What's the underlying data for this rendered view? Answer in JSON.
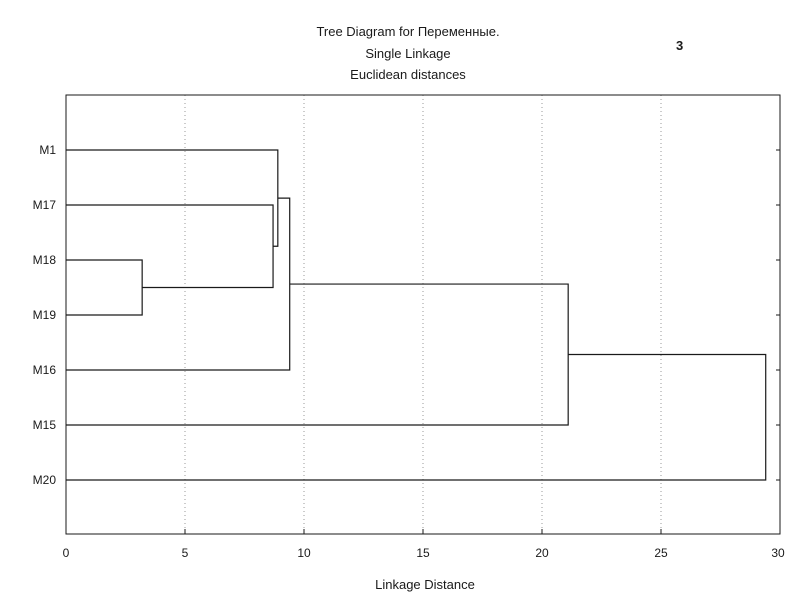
{
  "chart_data": {
    "type": "dendrogram",
    "title": [
      "Tree Diagram for  Переменные.",
      "Single Linkage",
      "Euclidean distances"
    ],
    "corner_label": "3",
    "xlabel": "Linkage Distance",
    "xlim": [
      0,
      30
    ],
    "xticks": [
      0,
      5,
      10,
      15,
      20,
      25,
      30
    ],
    "grid": "vertical dotted",
    "leaves": [
      "M1",
      "M17",
      "M18",
      "M19",
      "M16",
      "M15",
      "M20"
    ],
    "merges": [
      {
        "a": "M18",
        "b": "M19",
        "height": 3.2
      },
      {
        "a": "M17",
        "b": "M18+M19",
        "height": 8.7
      },
      {
        "a": "M1",
        "b": "M17+M18+M19",
        "height": 8.9
      },
      {
        "a": "M1+M17+M18+M19",
        "b": "M16",
        "height": 9.4
      },
      {
        "a": "M1+M17+M18+M19+M16",
        "b": "M15",
        "height": 21.1
      },
      {
        "a": "M1+M17+M18+M19+M16+M15",
        "b": "M20",
        "height": 29.4
      }
    ]
  }
}
